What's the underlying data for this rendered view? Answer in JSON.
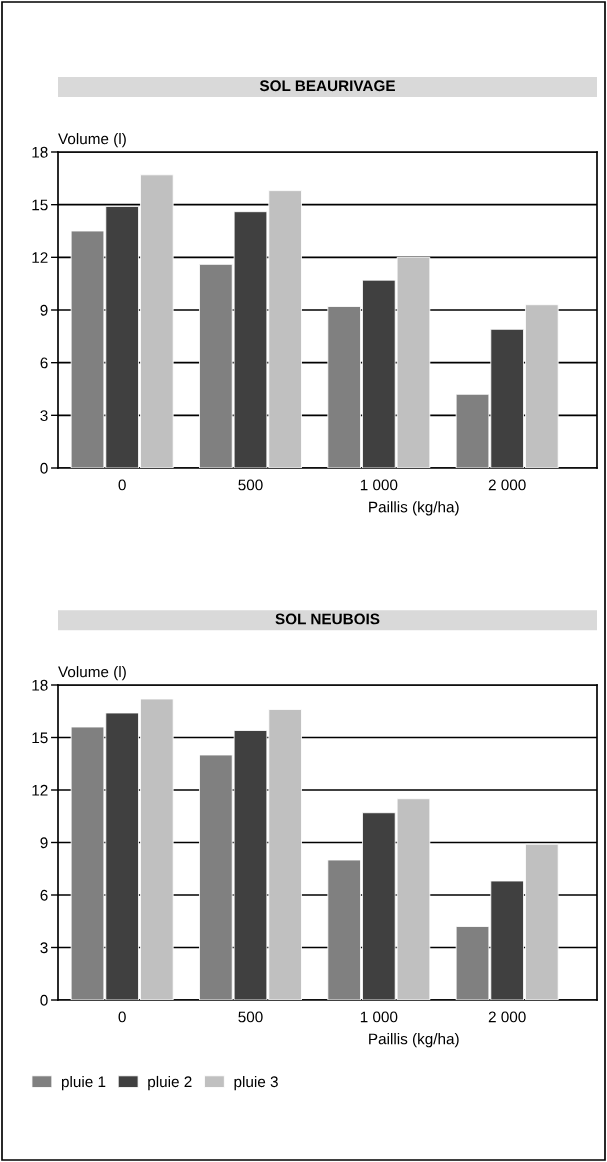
{
  "chart_data": [
    {
      "type": "bar",
      "title": "SOL BEAURIVAGE",
      "xlabel": "Paillis (kg/ha)",
      "ylabel": "Volume (l)",
      "categories": [
        "0",
        "500",
        "1 000",
        "2 000"
      ],
      "ylim": [
        0,
        18
      ],
      "yticks": [
        0,
        3,
        6,
        9,
        12,
        15,
        18
      ],
      "grid": "y",
      "series": [
        {
          "color": "#808080",
          "values": [
            13.5,
            11.6,
            9.2,
            4.2
          ]
        },
        {
          "color": "#404040",
          "values": [
            14.9,
            14.6,
            10.7,
            7.9
          ]
        },
        {
          "color": "#c0c0c0",
          "values": [
            16.7,
            15.8,
            12.0,
            9.3
          ]
        }
      ]
    },
    {
      "type": "bar",
      "title": "SOL NEUBOIS",
      "xlabel": "Paillis (kg/ha)",
      "ylabel": "Volume (l)",
      "categories": [
        "0",
        "500",
        "1 000",
        "2 000"
      ],
      "ylim": [
        0,
        18
      ],
      "yticks": [
        0,
        3,
        6,
        9,
        12,
        15,
        18
      ],
      "grid": "y",
      "legend": "bottom",
      "series": [
        {
          "name": "pluie 1",
          "color": "#808080",
          "values": [
            15.6,
            14.0,
            8.0,
            4.2
          ]
        },
        {
          "name": "pluie 2",
          "color": "#404040",
          "values": [
            16.4,
            15.4,
            10.7,
            6.8
          ]
        },
        {
          "name": "pluie 3",
          "color": "#c0c0c0",
          "values": [
            17.2,
            16.6,
            11.5,
            8.9
          ]
        }
      ]
    }
  ]
}
